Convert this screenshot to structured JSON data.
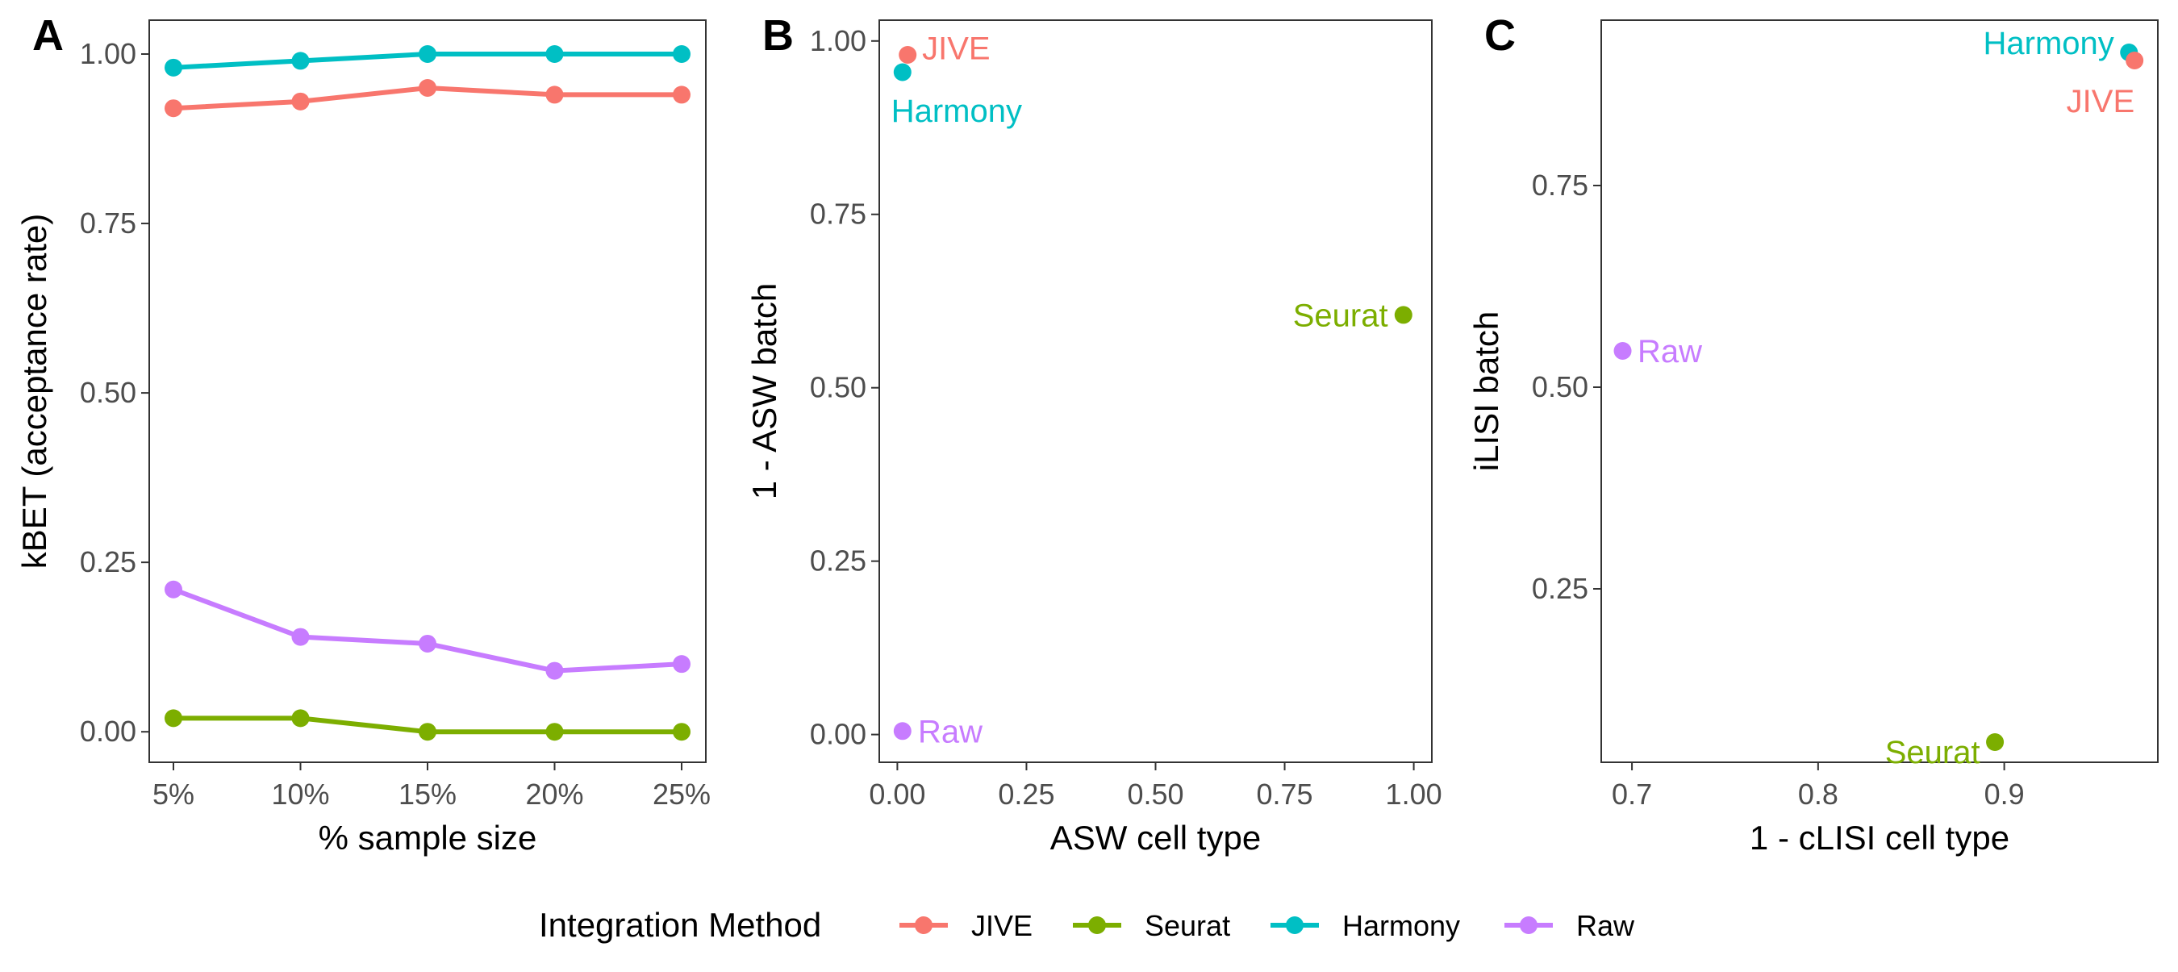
{
  "legend": {
    "title": "Integration Method",
    "items": [
      {
        "label": "JIVE",
        "color": "#F8766D"
      },
      {
        "label": "Seurat",
        "color": "#7CAE00"
      },
      {
        "label": "Harmony",
        "color": "#00BFC4"
      },
      {
        "label": "Raw",
        "color": "#C77CFF"
      }
    ]
  },
  "chart_data": [
    {
      "panel": "A",
      "type": "line",
      "xlabel": "% sample size",
      "ylabel": "kBET (acceptance rate)",
      "categories": [
        "5%",
        "10%",
        "15%",
        "20%",
        "25%"
      ],
      "yticks": [
        "0.00",
        "0.25",
        "0.50",
        "0.75",
        "1.00"
      ],
      "ylim": [
        -0.045,
        1.05
      ],
      "grid": false,
      "series": [
        {
          "name": "JIVE",
          "color": "#F8766D",
          "values": [
            0.92,
            0.93,
            0.95,
            0.94,
            0.94
          ]
        },
        {
          "name": "Seurat",
          "color": "#7CAE00",
          "values": [
            0.02,
            0.02,
            0.0,
            0.0,
            0.0
          ]
        },
        {
          "name": "Harmony",
          "color": "#00BFC4",
          "values": [
            0.98,
            0.99,
            1.0,
            1.0,
            1.0
          ]
        },
        {
          "name": "Raw",
          "color": "#C77CFF",
          "values": [
            0.21,
            0.14,
            0.13,
            0.09,
            0.1
          ]
        }
      ]
    },
    {
      "panel": "B",
      "type": "scatter",
      "xlabel": "ASW cell type",
      "ylabel": "1 - ASW batch",
      "xticks": [
        "0.00",
        "0.25",
        "0.50",
        "0.75",
        "1.00"
      ],
      "yticks": [
        "0.00",
        "0.25",
        "0.50",
        "0.75",
        "1.00"
      ],
      "xlim": [
        -0.035,
        1.035
      ],
      "ylim": [
        -0.04,
        1.03
      ],
      "grid": false,
      "points": [
        {
          "name": "JIVE",
          "color": "#F8766D",
          "x": 0.02,
          "y": 0.98,
          "label": "JIVE",
          "anchor": "start",
          "dx": 0.028,
          "dy": 0.01
        },
        {
          "name": "Harmony",
          "color": "#00BFC4",
          "x": 0.01,
          "y": 0.955,
          "label": "Harmony",
          "anchor": "start",
          "dx": -0.022,
          "dy": -0.055
        },
        {
          "name": "Seurat",
          "color": "#7CAE00",
          "x": 0.98,
          "y": 0.605,
          "label": "Seurat",
          "anchor": "end",
          "dx": -0.03,
          "dy": 0.0
        },
        {
          "name": "Raw",
          "color": "#C77CFF",
          "x": 0.01,
          "y": 0.005,
          "label": "Raw",
          "anchor": "start",
          "dx": 0.03,
          "dy": 0.0
        }
      ]
    },
    {
      "panel": "C",
      "type": "scatter",
      "xlabel": "1 - cLISI cell type",
      "ylabel": "iLISI batch",
      "xticks": [
        "0.7",
        "0.8",
        "0.9"
      ],
      "yticks": [
        "0.25",
        "0.50",
        "0.75"
      ],
      "xlim": [
        0.6835,
        0.9825
      ],
      "ylim": [
        0.035,
        0.955
      ],
      "grid": false,
      "points": [
        {
          "name": "Harmony",
          "color": "#00BFC4",
          "x": 0.967,
          "y": 0.915,
          "label": "Harmony",
          "anchor": "end",
          "dx": -0.008,
          "dy": 0.012
        },
        {
          "name": "JIVE",
          "color": "#F8766D",
          "x": 0.97,
          "y": 0.905,
          "label": "JIVE",
          "anchor": "end",
          "dx": 0.0,
          "dy": -0.05
        },
        {
          "name": "Raw",
          "color": "#C77CFF",
          "x": 0.695,
          "y": 0.545,
          "label": "Raw",
          "anchor": "start",
          "dx": 0.008,
          "dy": 0.0
        },
        {
          "name": "Seurat",
          "color": "#7CAE00",
          "x": 0.895,
          "y": 0.06,
          "label": "Seurat",
          "anchor": "end",
          "dx": -0.008,
          "dy": -0.012
        }
      ]
    }
  ]
}
